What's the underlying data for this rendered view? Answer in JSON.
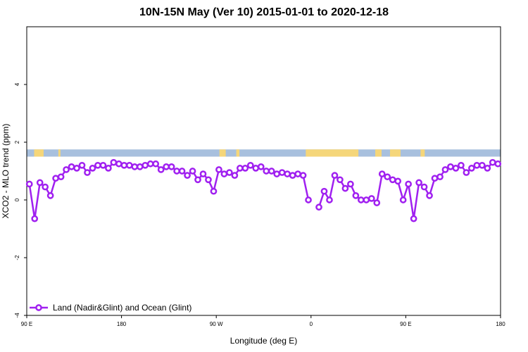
{
  "chart_data": {
    "type": "line",
    "title": "10N-15N May (Ver 10)   2015-01-01 to 2020-12-18",
    "xlabel": "Longitude (deg E)",
    "ylabel": "XCO2 - MLO trend (ppm)",
    "x_ticks": [
      {
        "value": 90,
        "label": "90 E"
      },
      {
        "value": 180,
        "label": "180"
      },
      {
        "value": 270,
        "label": "90 W"
      },
      {
        "value": 360,
        "label": "0"
      },
      {
        "value": 450,
        "label": "90 E"
      },
      {
        "value": 540,
        "label": "180"
      }
    ],
    "y_ticks": [
      -4,
      -2,
      0,
      2,
      4
    ],
    "xlim": [
      90,
      540
    ],
    "ylim": [
      -4,
      6
    ],
    "grid": false,
    "legend_position": "bottom-left",
    "series": [
      {
        "name": "Land (Nadir&Glint) and Ocean (Glint)",
        "color": "#a020f0",
        "x": [
          92.5,
          97.5,
          102.5,
          107.5,
          112.5,
          117.5,
          122.5,
          127.5,
          132.5,
          137.5,
          142.5,
          147.5,
          152.5,
          157.5,
          162.5,
          167.5,
          172.5,
          177.5,
          182.5,
          187.5,
          192.5,
          197.5,
          202.5,
          207.5,
          212.5,
          217.5,
          222.5,
          227.5,
          232.5,
          237.5,
          242.5,
          247.5,
          252.5,
          257.5,
          262.5,
          267.5,
          272.5,
          277.5,
          282.5,
          287.5,
          292.5,
          297.5,
          302.5,
          307.5,
          312.5,
          317.5,
          322.5,
          327.5,
          332.5,
          337.5,
          342.5,
          347.5,
          352.5,
          357.5,
          367.5,
          372.5,
          377.5,
          382.5,
          387.5,
          392.5,
          397.5,
          402.5,
          407.5,
          412.5,
          417.5,
          422.5,
          427.5,
          432.5,
          437.5,
          442.5,
          447.5,
          452.5,
          457.5,
          462.5,
          467.5,
          472.5,
          477.5,
          482.5,
          487.5,
          492.5,
          497.5,
          502.5,
          507.5,
          512.5,
          517.5,
          522.5,
          527.5,
          532.5,
          537.5
        ],
        "segments": [
          [
            0,
            53
          ],
          [
            54,
            88
          ]
        ],
        "values": [
          0.55,
          -0.65,
          0.6,
          0.45,
          0.15,
          0.75,
          0.8,
          1.05,
          1.15,
          1.1,
          1.2,
          0.95,
          1.1,
          1.2,
          1.2,
          1.1,
          1.3,
          1.25,
          1.2,
          1.2,
          1.15,
          1.15,
          1.2,
          1.25,
          1.25,
          1.05,
          1.15,
          1.15,
          1.0,
          1.0,
          0.85,
          1.0,
          0.7,
          0.9,
          0.7,
          0.3,
          1.05,
          0.9,
          0.95,
          0.85,
          1.1,
          1.1,
          1.2,
          1.1,
          1.15,
          1.0,
          1.0,
          0.9,
          0.95,
          0.9,
          0.85,
          0.9,
          0.85,
          0.0,
          -0.25,
          0.3,
          0.0,
          0.85,
          0.7,
          0.4,
          0.55,
          0.15,
          0.0,
          0.0,
          0.05,
          -0.1,
          0.9,
          0.8,
          0.7,
          0.65,
          0.0,
          0.55,
          -0.65,
          0.6,
          0.45,
          0.15,
          0.75,
          0.8,
          1.05,
          1.15,
          1.1,
          1.2,
          0.95,
          1.1,
          1.2,
          1.2,
          1.1,
          1.3,
          1.25
        ]
      }
    ],
    "background_map": {
      "y_range": [
        1.5,
        1.75
      ],
      "ocean_color": "#a8c0de",
      "land_color": "#f5d67a",
      "land_spans": [
        [
          97,
          106
        ],
        [
          120,
          122
        ],
        [
          273,
          279
        ],
        [
          289,
          292
        ],
        [
          355,
          405
        ],
        [
          421,
          427
        ],
        [
          435,
          445
        ],
        [
          464,
          468
        ]
      ]
    }
  }
}
